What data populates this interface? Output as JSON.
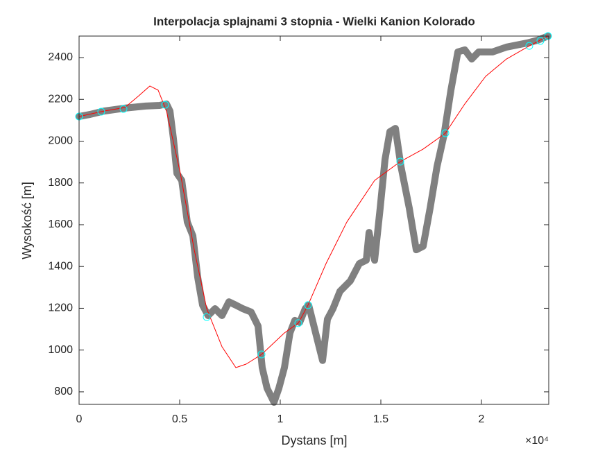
{
  "chart_data": {
    "type": "line",
    "title": "Interpolacja splajnami 3 stopnia - Wielki Kanion Kolorado",
    "x_label": "Dystans [m]",
    "y_label": "Wysokość [m]",
    "x_exponent_label": "×10⁴",
    "xlim": [
      0,
      23345
    ],
    "ylim": [
      740,
      2503
    ],
    "xticks": [
      0,
      {
        "value": 5000,
        "label": "0.5"
      },
      {
        "value": 10000,
        "label": "1"
      },
      {
        "value": 15000,
        "label": "1.5"
      },
      {
        "value": 20000,
        "label": "2"
      }
    ],
    "yticks": [
      800,
      1000,
      1200,
      1400,
      1600,
      1800,
      2000,
      2200,
      2400
    ],
    "grid": false,
    "series": [
      {
        "color": "#808080",
        "line_width": 10,
        "marker": "none",
        "x": [
          0,
          552,
          1241,
          2276,
          3310,
          4000,
          4345,
          4517,
          4690,
          4862,
          5103,
          5379,
          5655,
          5897,
          6138,
          6414,
          6759,
          7103,
          7448,
          7793,
          8138,
          8552,
          8897,
          9103,
          9345,
          9690,
          9931,
          10207,
          10483,
          10724,
          10966,
          11241,
          11414,
          11759,
          12103,
          12345,
          12621,
          12966,
          13483,
          13931,
          14276,
          14414,
          14690,
          14966,
          15207,
          15448,
          15724,
          16000,
          16414,
          16759,
          17103,
          17448,
          17793,
          18138,
          18483,
          18828,
          19172,
          19517,
          19862,
          20552,
          21241,
          22276,
          22793,
          23310
        ],
        "values": [
          2118,
          2128,
          2144,
          2158,
          2168,
          2171,
          2178,
          2144,
          2012,
          1846,
          1812,
          1613,
          1547,
          1348,
          1215,
          1165,
          1198,
          1165,
          1231,
          1215,
          1198,
          1182,
          1115,
          916,
          817,
          750,
          817,
          916,
          1082,
          1142,
          1132,
          1198,
          1215,
          1082,
          950,
          1148,
          1198,
          1281,
          1331,
          1414,
          1430,
          1563,
          1430,
          1679,
          1912,
          2045,
          2061,
          1879,
          1679,
          1480,
          1497,
          1679,
          1879,
          2028,
          2244,
          2427,
          2437,
          2393,
          2427,
          2427,
          2450,
          2470,
          2483,
          2503
        ]
      },
      {
        "color": "#ff0000",
        "line_width": 1,
        "marker": "none",
        "x": [
          0,
          1241,
          2276,
          2966,
          3517,
          3931,
          4345,
          5034,
          5724,
          6345,
          7103,
          7793,
          8310,
          9069,
          10207,
          10897,
          11379,
          12276,
          13310,
          14690,
          15966,
          17103,
          18207,
          19172,
          20207,
          21241,
          22379,
          23310
        ],
        "values": [
          2118,
          2144,
          2161,
          2217,
          2264,
          2244,
          2144,
          1846,
          1480,
          1198,
          1016,
          916,
          933,
          979,
          1082,
          1129,
          1215,
          1414,
          1613,
          1812,
          1902,
          1962,
          2038,
          2178,
          2310,
          2393,
          2456,
          2503
        ]
      },
      {
        "color": "#00ffff",
        "line_width": 0,
        "marker": "circle",
        "x": [
          0,
          1103,
          2207,
          4276,
          6345,
          9069,
          10897,
          11379,
          15966,
          18207,
          22379,
          22931,
          23310
        ],
        "values": [
          2118,
          2141,
          2154,
          2174,
          1158,
          979,
          1129,
          1215,
          1902,
          2038,
          2456,
          2480,
          2503
        ]
      }
    ]
  }
}
